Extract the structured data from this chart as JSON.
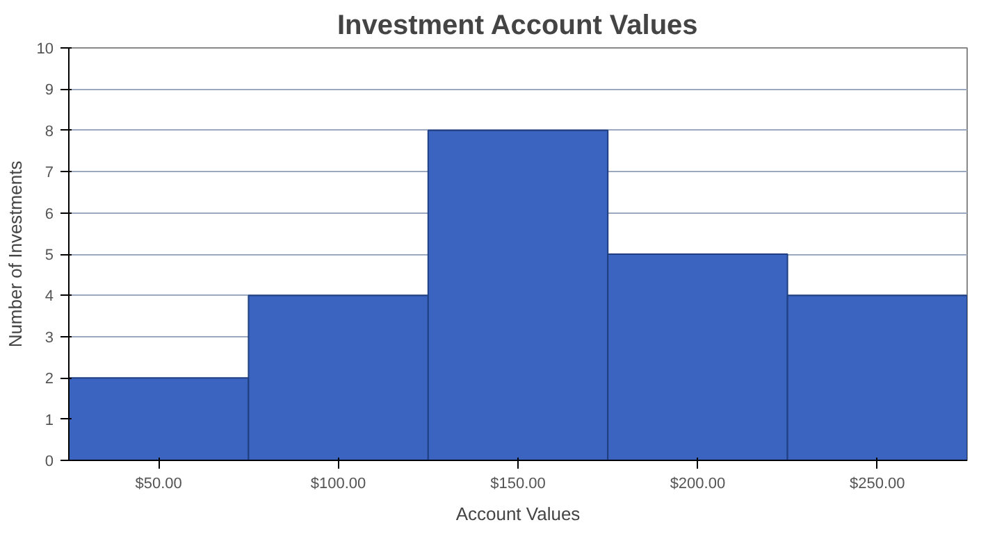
{
  "chart_data": {
    "type": "bar",
    "title": "Investment Account Values",
    "xlabel": "Account Values",
    "ylabel": "Number of Investments",
    "categories": [
      "$50.00",
      "$100.00",
      "$150.00",
      "$200.00",
      "$250.00"
    ],
    "values": [
      2,
      4,
      8,
      5,
      4
    ],
    "color": "#3a64c0",
    "ylim": [
      0,
      10
    ],
    "yticks": [
      0,
      1,
      2,
      3,
      4,
      5,
      6,
      7,
      8,
      9,
      10
    ],
    "grid": "y"
  }
}
